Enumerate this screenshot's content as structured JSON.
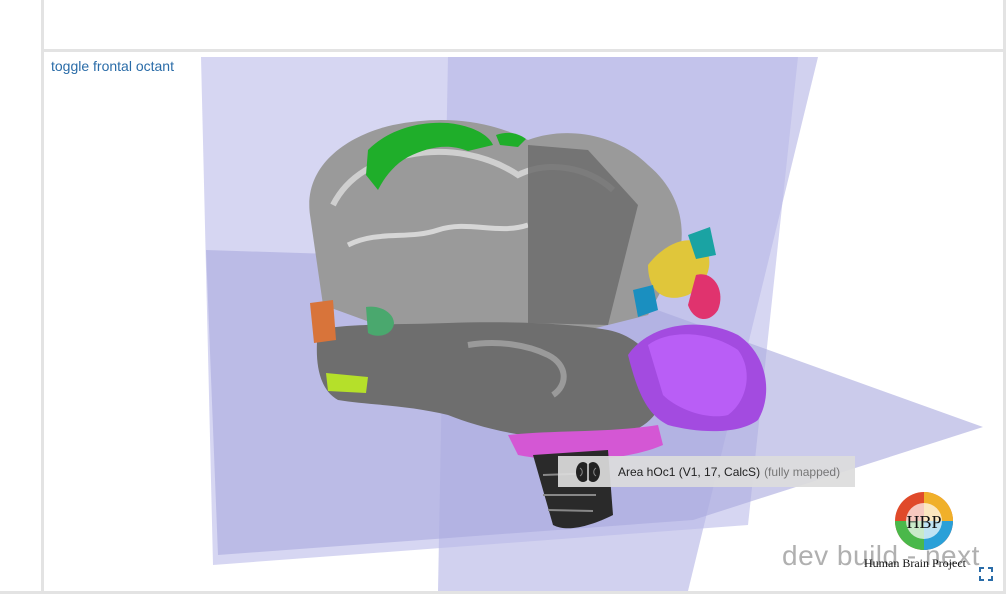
{
  "viewer": {
    "toggle_label": "toggle frontal octant",
    "tooltip": {
      "area_name": "Area hOc1 (V1, 17, CalcS)",
      "status": "(fully mapped)",
      "icon": "brain-icon"
    },
    "watermark": "dev build - next",
    "logo": {
      "initials": "HBP",
      "text": "Human Brain Project"
    },
    "fullscreen_icon": "fullscreen-icon"
  },
  "colors": {
    "plane": "#b8b8e6",
    "plane_dark": "#9c9cd6",
    "link": "#2a6ca8",
    "tooltip_bg": "#dcdcdc",
    "frame_border": "#e3e3e3",
    "fullscreen": "#2a6ca8"
  }
}
